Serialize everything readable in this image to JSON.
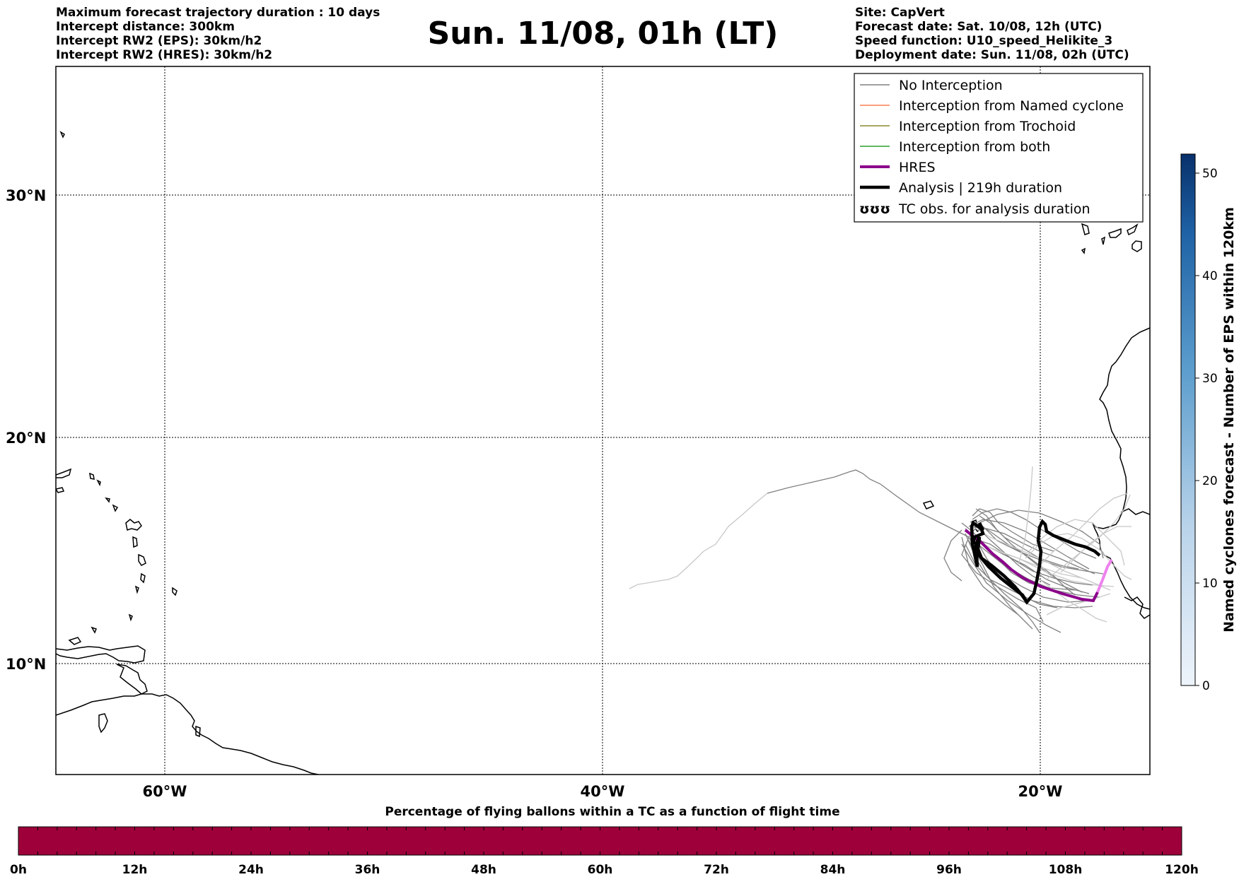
{
  "title": "Sun. 11/08, 01h (LT)",
  "info_left": [
    "Maximum forecast trajectory duration : 10 days",
    "Intercept distance: 300km",
    "Intercept RW2 (EPS):  30km/h2",
    "Intercept RW2 (HRES): 30km/h2"
  ],
  "info_right": [
    "Site: CapVert",
    "Forecast date: Sat. 10/08, 12h (UTC)",
    "Speed function: U10_speed_Helikite_3",
    "Deployment date: Sun. 11/08, 02h (UTC)"
  ],
  "map": {
    "lat_labels": [
      "30°N",
      "20°N",
      "10°N"
    ],
    "lon_labels": [
      "60°W",
      "40°W",
      "20°W"
    ]
  },
  "legend": {
    "items": [
      {
        "label": "No Interception",
        "color": "#808080",
        "style": "thin"
      },
      {
        "label": "Interception from Named cyclone",
        "color": "#ff7f50",
        "style": "thin"
      },
      {
        "label": "Interception from Trochoid",
        "color": "#8b8b2e",
        "style": "thin"
      },
      {
        "label": "Interception from both",
        "color": "#2ca02c",
        "style": "thin"
      },
      {
        "label": "HRES",
        "color": "#8b008b",
        "style": "thick"
      },
      {
        "label": "Analysis | 219h duration",
        "color": "#000000",
        "style": "thick"
      },
      {
        "label": "TC obs. for analysis duration",
        "color": "#000000",
        "style": "symbol",
        "symbol": "ʊʊʊ"
      }
    ]
  },
  "colorbar_right": {
    "label": "Named cyclones forecast - Number of EPS within 120km",
    "ticks": [
      "0",
      "10",
      "20",
      "30",
      "40",
      "50"
    ]
  },
  "colorbar_bottom": {
    "title": "Percentage of flying ballons within a TC as a function of flight time",
    "ticks": [
      "0h",
      "12h",
      "24h",
      "36h",
      "48h",
      "60h",
      "72h",
      "84h",
      "96h",
      "108h",
      "120h"
    ],
    "fill_color": "#9e003a"
  }
}
